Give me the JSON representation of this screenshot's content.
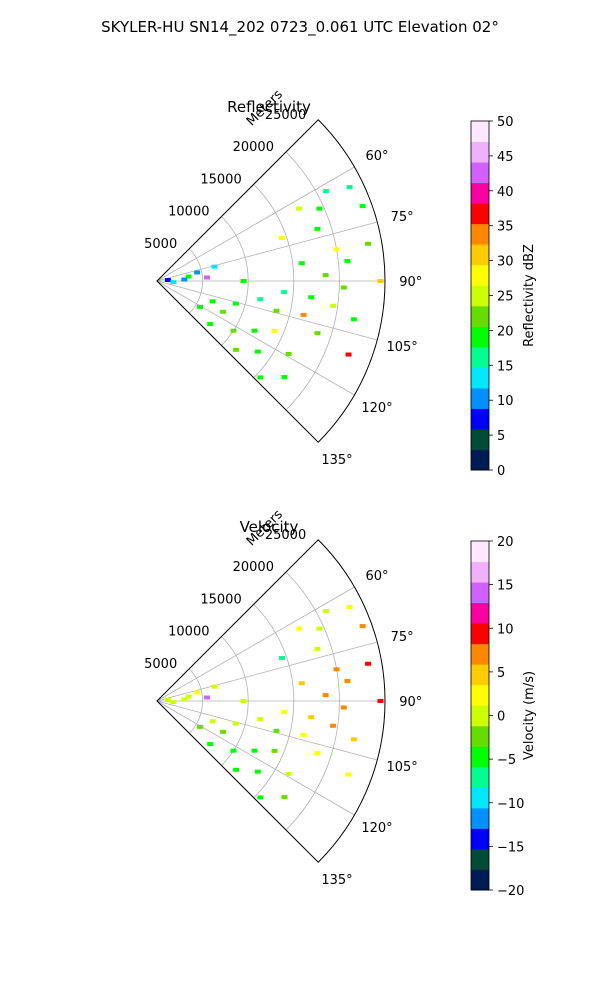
{
  "figure": {
    "suptitle": "SKYLER-HU  SN14_202  0723_0.061 UTC Elevation 02°"
  },
  "chart_data": [
    {
      "type": "polar-sector-scatter",
      "title": "Reflectivity",
      "radial_label": "Meters",
      "theta_range_deg": [
        45,
        135
      ],
      "r_range": [
        0,
        25000
      ],
      "r_ticks": [
        5000,
        10000,
        15000,
        20000,
        25000
      ],
      "r_tick_labels": [
        "5000",
        "10000",
        "15000",
        "20000",
        "25000"
      ],
      "theta_ticks": [
        60,
        75,
        90,
        105,
        120,
        135
      ],
      "theta_tick_labels": [
        "60°",
        "75°",
        "90°",
        "105°",
        "120°",
        "135°"
      ],
      "grid": true,
      "colorbar": {
        "label": "Reflectivity dBZ",
        "range": [
          0,
          50
        ],
        "ticks": [
          0,
          5,
          10,
          15,
          20,
          25,
          30,
          35,
          40,
          45,
          50
        ],
        "tick_labels": [
          "0",
          "5",
          "10",
          "15",
          "20",
          "25",
          "30",
          "35",
          "40",
          "45",
          "50"
        ],
        "colors": [
          "#001a55",
          "#004a3a",
          "#0000ff",
          "#0090ff",
          "#00e8ff",
          "#00ff90",
          "#00ff00",
          "#66dd00",
          "#ccff00",
          "#ffff00",
          "#ffcc00",
          "#ff8800",
          "#ff0000",
          "#ff00a0",
          "#d060ff",
          "#f0b0ff",
          "#ffe8ff"
        ]
      },
      "cells": [
        {
          "theta": 62,
          "r": 21000,
          "v": 17
        },
        {
          "theta": 63,
          "r": 17500,
          "v": 24
        },
        {
          "theta": 66,
          "r": 19500,
          "v": 18
        },
        {
          "theta": 64,
          "r": 23500,
          "v": 15
        },
        {
          "theta": 70,
          "r": 24000,
          "v": 18
        },
        {
          "theta": 71,
          "r": 14500,
          "v": 28
        },
        {
          "theta": 72,
          "r": 18500,
          "v": 20
        },
        {
          "theta": 76,
          "r": 6500,
          "v": 12
        },
        {
          "theta": 78,
          "r": 4500,
          "v": 9
        },
        {
          "theta": 80,
          "r": 20000,
          "v": 27
        },
        {
          "theta": 80,
          "r": 23500,
          "v": 22
        },
        {
          "theta": 82,
          "r": 3500,
          "v": 18
        },
        {
          "theta": 83,
          "r": 16000,
          "v": 20
        },
        {
          "theta": 84,
          "r": 21000,
          "v": 19
        },
        {
          "theta": 85,
          "r": 1200,
          "v": 7
        },
        {
          "theta": 86,
          "r": 5500,
          "v": 42
        },
        {
          "theta": 87,
          "r": 3000,
          "v": 10
        },
        {
          "theta": 88,
          "r": 18500,
          "v": 21
        },
        {
          "theta": 90,
          "r": 24500,
          "v": 31
        },
        {
          "theta": 90,
          "r": 9500,
          "v": 19
        },
        {
          "theta": 92,
          "r": 20500,
          "v": 22
        },
        {
          "theta": 94,
          "r": 1800,
          "v": 13
        },
        {
          "theta": 95,
          "r": 14000,
          "v": 16
        },
        {
          "theta": 96,
          "r": 17000,
          "v": 18
        },
        {
          "theta": 98,
          "r": 19500,
          "v": 26
        },
        {
          "theta": 100,
          "r": 11500,
          "v": 17
        },
        {
          "theta": 101,
          "r": 22000,
          "v": 20
        },
        {
          "theta": 103,
          "r": 16500,
          "v": 34
        },
        {
          "theta": 104,
          "r": 13500,
          "v": 22
        },
        {
          "theta": 106,
          "r": 9000,
          "v": 18
        },
        {
          "theta": 108,
          "r": 18500,
          "v": 21
        },
        {
          "theta": 110,
          "r": 6500,
          "v": 19
        },
        {
          "theta": 111,
          "r": 22500,
          "v": 36
        },
        {
          "theta": 113,
          "r": 14000,
          "v": 27
        },
        {
          "theta": 115,
          "r": 8000,
          "v": 22
        },
        {
          "theta": 117,
          "r": 12000,
          "v": 20
        },
        {
          "theta": 119,
          "r": 16500,
          "v": 23
        },
        {
          "theta": 121,
          "r": 5500,
          "v": 18
        },
        {
          "theta": 123,
          "r": 10000,
          "v": 21
        },
        {
          "theta": 125,
          "r": 13500,
          "v": 19
        },
        {
          "theta": 127,
          "r": 17500,
          "v": 20
        },
        {
          "theta": 129,
          "r": 7500,
          "v": 18
        },
        {
          "theta": 131,
          "r": 11500,
          "v": 22
        },
        {
          "theta": 133,
          "r": 15500,
          "v": 19
        }
      ]
    },
    {
      "type": "polar-sector-scatter",
      "title": "Velocity",
      "radial_label": "Meters",
      "theta_range_deg": [
        45,
        135
      ],
      "r_range": [
        0,
        25000
      ],
      "r_ticks": [
        5000,
        10000,
        15000,
        20000,
        25000
      ],
      "r_tick_labels": [
        "5000",
        "10000",
        "15000",
        "20000",
        "25000"
      ],
      "theta_ticks": [
        60,
        75,
        90,
        105,
        120,
        135
      ],
      "theta_tick_labels": [
        "60°",
        "75°",
        "90°",
        "105°",
        "120°",
        "135°"
      ],
      "grid": true,
      "colorbar": {
        "label": "Velocity (m/s)",
        "range": [
          -20,
          20
        ],
        "ticks": [
          -20,
          -15,
          -10,
          -5,
          0,
          5,
          10,
          15,
          20
        ],
        "tick_labels": [
          "−20",
          "−15",
          "−10",
          "−5",
          "0",
          "5",
          "10",
          "15",
          "20"
        ],
        "colors": [
          "#001a55",
          "#004a3a",
          "#0000ff",
          "#0090ff",
          "#00e8ff",
          "#00ff90",
          "#00ff00",
          "#66dd00",
          "#ccff00",
          "#ffff00",
          "#ffcc00",
          "#ff8800",
          "#ff0000",
          "#ff00a0",
          "#d060ff",
          "#f0b0ff",
          "#ffe8ff"
        ]
      },
      "cells": [
        {
          "theta": 62,
          "r": 21000,
          "v": 1
        },
        {
          "theta": 63,
          "r": 17500,
          "v": 2
        },
        {
          "theta": 66,
          "r": 19500,
          "v": 1
        },
        {
          "theta": 64,
          "r": 23500,
          "v": 3
        },
        {
          "theta": 70,
          "r": 24000,
          "v": 6
        },
        {
          "theta": 71,
          "r": 14500,
          "v": -8
        },
        {
          "theta": 72,
          "r": 18500,
          "v": 1
        },
        {
          "theta": 76,
          "r": 6500,
          "v": 0
        },
        {
          "theta": 78,
          "r": 4500,
          "v": 2
        },
        {
          "theta": 80,
          "r": 20000,
          "v": 8
        },
        {
          "theta": 80,
          "r": 23500,
          "v": 10
        },
        {
          "theta": 82,
          "r": 3500,
          "v": 1
        },
        {
          "theta": 83,
          "r": 16000,
          "v": 4
        },
        {
          "theta": 84,
          "r": 21000,
          "v": 7
        },
        {
          "theta": 85,
          "r": 1200,
          "v": 0
        },
        {
          "theta": 86,
          "r": 5500,
          "v": 14
        },
        {
          "theta": 87,
          "r": 3000,
          "v": 1
        },
        {
          "theta": 88,
          "r": 18500,
          "v": 6
        },
        {
          "theta": 90,
          "r": 24500,
          "v": 9
        },
        {
          "theta": 90,
          "r": 9500,
          "v": 1
        },
        {
          "theta": 92,
          "r": 20500,
          "v": 7
        },
        {
          "theta": 94,
          "r": 1800,
          "v": 0
        },
        {
          "theta": 95,
          "r": 14000,
          "v": 2
        },
        {
          "theta": 96,
          "r": 17000,
          "v": 5
        },
        {
          "theta": 98,
          "r": 19500,
          "v": 6
        },
        {
          "theta": 100,
          "r": 11500,
          "v": 1
        },
        {
          "theta": 101,
          "r": 22000,
          "v": 5
        },
        {
          "theta": 103,
          "r": 16500,
          "v": 3
        },
        {
          "theta": 104,
          "r": 13500,
          "v": -2
        },
        {
          "theta": 106,
          "r": 9000,
          "v": 0
        },
        {
          "theta": 108,
          "r": 18500,
          "v": 2
        },
        {
          "theta": 110,
          "r": 6500,
          "v": 1
        },
        {
          "theta": 111,
          "r": 22500,
          "v": 3
        },
        {
          "theta": 113,
          "r": 14000,
          "v": -3
        },
        {
          "theta": 115,
          "r": 8000,
          "v": -2
        },
        {
          "theta": 117,
          "r": 12000,
          "v": -4
        },
        {
          "theta": 119,
          "r": 16500,
          "v": -1
        },
        {
          "theta": 121,
          "r": 5500,
          "v": -3
        },
        {
          "theta": 123,
          "r": 10000,
          "v": -4
        },
        {
          "theta": 125,
          "r": 13500,
          "v": -5
        },
        {
          "theta": 127,
          "r": 17500,
          "v": -3
        },
        {
          "theta": 129,
          "r": 7500,
          "v": -4
        },
        {
          "theta": 131,
          "r": 11500,
          "v": -5
        },
        {
          "theta": 133,
          "r": 15500,
          "v": -4
        }
      ]
    }
  ]
}
